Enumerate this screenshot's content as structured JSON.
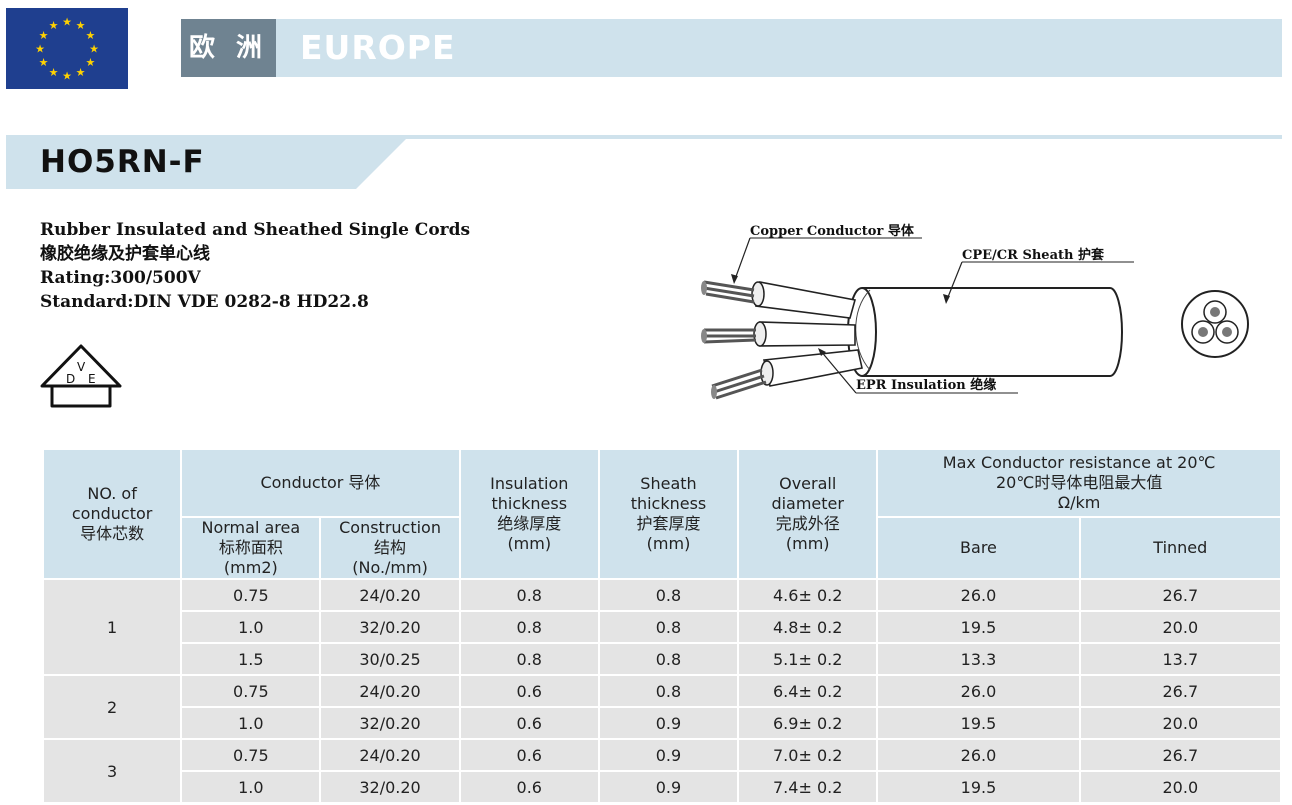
{
  "banner": {
    "cn_label": "欧 洲",
    "en_label": "EUROPE"
  },
  "model": {
    "title": "HO5RN-F"
  },
  "description": {
    "line1": "Rubber Insulated and Sheathed Single Cords",
    "line2": "橡胶绝缘及护套单心线",
    "line3": "Rating:300/500V",
    "line4": "Standard:DIN VDE 0282-8 HD22.8"
  },
  "vde_logo": {
    "letters": "DVE",
    "icon": "vde-certification-icon"
  },
  "diagram": {
    "callouts": {
      "copper": "Copper Conductor 导体",
      "sheath": "CPE/CR Sheath 护套",
      "epr": "EPR Insulation 绝缘"
    }
  },
  "table": {
    "headers": {
      "no_of_conductor": [
        "NO. of",
        "conductor",
        "导体芯数"
      ],
      "conductor_group": "Conductor 导体",
      "normal_area": [
        "Normal area",
        "标称面积",
        "(mm2)"
      ],
      "construction": [
        "Construction",
        "结构",
        "(No./mm)"
      ],
      "insulation": [
        "Insulation",
        "thickness",
        "绝缘厚度",
        "(mm)"
      ],
      "sheath": [
        "Sheath",
        "thickness",
        "护套厚度",
        "(mm)"
      ],
      "overall": [
        "Overall",
        "diameter",
        "完成外径",
        "(mm)"
      ],
      "max_resistance": [
        "Max Conductor resistance at 20℃",
        "20℃时导体电阻最大值",
        "Ω/km"
      ],
      "bare": "Bare",
      "tinned": "Tinned"
    },
    "groups": [
      {
        "cores": "1",
        "rows": [
          {
            "area": "0.75",
            "construction": "24/0.20",
            "insulation": "0.8",
            "sheath": "0.8",
            "overall": "4.6± 0.2",
            "bare": "26.0",
            "tinned": "26.7"
          },
          {
            "area": "1.0",
            "construction": "32/0.20",
            "insulation": "0.8",
            "sheath": "0.8",
            "overall": "4.8± 0.2",
            "bare": "19.5",
            "tinned": "20.0"
          },
          {
            "area": "1.5",
            "construction": "30/0.25",
            "insulation": "0.8",
            "sheath": "0.8",
            "overall": "5.1± 0.2",
            "bare": "13.3",
            "tinned": "13.7"
          }
        ]
      },
      {
        "cores": "2",
        "rows": [
          {
            "area": "0.75",
            "construction": "24/0.20",
            "insulation": "0.6",
            "sheath": "0.8",
            "overall": "6.4± 0.2",
            "bare": "26.0",
            "tinned": "26.7"
          },
          {
            "area": "1.0",
            "construction": "32/0.20",
            "insulation": "0.6",
            "sheath": "0.9",
            "overall": "6.9± 0.2",
            "bare": "19.5",
            "tinned": "20.0"
          }
        ]
      },
      {
        "cores": "3",
        "rows": [
          {
            "area": "0.75",
            "construction": "24/0.20",
            "insulation": "0.6",
            "sheath": "0.9",
            "overall": "7.0± 0.2",
            "bare": "26.0",
            "tinned": "26.7"
          },
          {
            "area": "1.0",
            "construction": "32/0.20",
            "insulation": "0.6",
            "sheath": "0.9",
            "overall": "7.4± 0.2",
            "bare": "19.5",
            "tinned": "20.0"
          }
        ]
      }
    ]
  },
  "colors": {
    "flag_blue": "#1f3f8f",
    "flag_star": "#ffd200",
    "banner_light": "#cfe2ec",
    "banner_dark": "#6f8391",
    "cell_gray": "#e4e4e4"
  }
}
